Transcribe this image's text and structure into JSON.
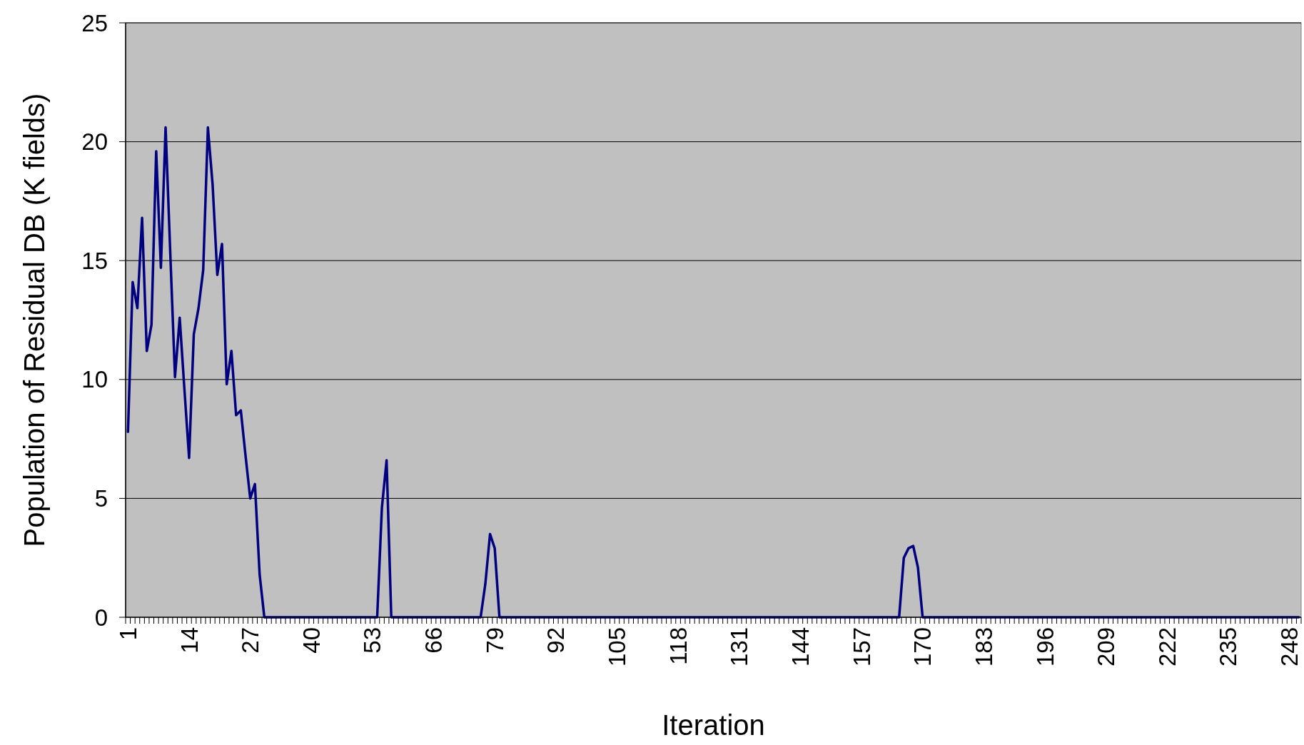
{
  "chart_data": {
    "type": "line",
    "xlabel": "Iteration",
    "ylabel": "Population of Residual DB (K fields)",
    "categories": [
      "1",
      null,
      null,
      null,
      null,
      null,
      null,
      null,
      null,
      null,
      null,
      null,
      null,
      "14",
      null,
      null,
      null,
      null,
      null,
      null,
      null,
      null,
      null,
      null,
      null,
      null,
      "27",
      null,
      null,
      null,
      null,
      null,
      null,
      null,
      null,
      null,
      null,
      null,
      null,
      "40",
      null,
      null,
      null,
      null,
      null,
      null,
      null,
      null,
      null,
      null,
      null,
      null,
      "53",
      null,
      null,
      null,
      null,
      null,
      null,
      null,
      null,
      null,
      null,
      null,
      null,
      "66",
      null,
      null,
      null,
      null,
      null,
      null,
      null,
      null,
      null,
      null,
      null,
      null,
      "79",
      null,
      null,
      null,
      null,
      null,
      null,
      null,
      null,
      null,
      null,
      null,
      null,
      "92",
      null,
      null,
      null,
      null,
      null,
      null,
      null,
      null,
      null,
      null,
      null,
      null,
      "105",
      null,
      null,
      null,
      null,
      null,
      null,
      null,
      null,
      null,
      null,
      null,
      null,
      "118",
      null,
      null,
      null,
      null,
      null,
      null,
      null,
      null,
      null,
      null,
      null,
      null,
      "131",
      null,
      null,
      null,
      null,
      null,
      null,
      null,
      null,
      null,
      null,
      null,
      null,
      "144",
      null,
      null,
      null,
      null,
      null,
      null,
      null,
      null,
      null,
      null,
      null,
      null,
      "157",
      null,
      null,
      null,
      null,
      null,
      null,
      null,
      null,
      null,
      null,
      null,
      null,
      "170",
      null,
      null,
      null,
      null,
      null,
      null,
      null,
      null,
      null,
      null,
      null,
      null,
      "183",
      null,
      null,
      null,
      null,
      null,
      null,
      null,
      null,
      null,
      null,
      null,
      null,
      "196",
      null,
      null,
      null,
      null,
      null,
      null,
      null,
      null,
      null,
      null,
      null,
      null,
      "209",
      null,
      null,
      null,
      null,
      null,
      null,
      null,
      null,
      null,
      null,
      null,
      null,
      "222",
      null,
      null,
      null,
      null,
      null,
      null,
      null,
      null,
      null,
      null,
      null,
      null,
      "235",
      null,
      null,
      null,
      null,
      null,
      null,
      null,
      null,
      null,
      null,
      null,
      null,
      "248",
      null,
      null
    ],
    "series": [
      {
        "color": "#000080",
        "values": [
          7.8,
          14.1,
          13.0,
          16.8,
          11.2,
          12.3,
          19.6,
          14.7,
          20.6,
          15.3,
          10.1,
          12.6,
          9.6,
          6.7,
          11.9,
          13.0,
          14.6,
          20.6,
          18.2,
          14.4,
          15.7,
          9.8,
          11.2,
          8.5,
          8.7,
          6.8,
          5.0,
          5.6,
          1.8,
          0,
          0,
          0,
          0,
          0,
          0,
          0,
          0,
          0,
          0,
          0,
          0,
          0,
          0,
          0,
          0,
          0,
          0,
          0,
          0,
          0,
          0,
          0,
          0,
          0,
          4.6,
          6.6,
          0,
          0,
          0,
          0,
          0,
          0,
          0,
          0,
          0,
          0,
          0,
          0,
          0,
          0,
          0,
          0,
          0,
          0,
          0,
          0,
          1.4,
          3.5,
          2.9,
          0,
          0,
          0,
          0,
          0,
          0,
          0,
          0,
          0,
          0,
          0,
          0,
          0,
          0,
          0,
          0,
          0,
          0,
          0,
          0,
          0,
          0,
          0,
          0,
          0,
          0,
          0,
          0,
          0,
          0,
          0,
          0,
          0,
          0,
          0,
          0,
          0,
          0,
          0,
          0,
          0,
          0,
          0,
          0,
          0,
          0,
          0,
          0,
          0,
          0,
          0,
          0,
          0,
          0,
          0,
          0,
          0,
          0,
          0,
          0,
          0,
          0,
          0,
          0,
          0,
          0,
          0,
          0,
          0,
          0,
          0,
          0,
          0,
          0,
          0,
          0,
          0,
          0,
          0,
          0,
          0,
          0,
          0,
          0,
          0,
          0,
          2.5,
          2.9,
          3.0,
          2.1,
          0,
          0,
          0,
          0,
          0,
          0,
          0,
          0,
          0,
          0,
          0,
          0,
          0,
          0,
          0,
          0,
          0,
          0,
          0,
          0,
          0,
          0,
          0,
          0,
          0,
          0,
          0,
          0,
          0,
          0,
          0,
          0,
          0,
          0,
          0,
          0,
          0,
          0,
          0,
          0,
          0,
          0,
          0,
          0,
          0,
          0,
          0,
          0,
          0,
          0,
          0,
          0,
          0,
          0,
          0,
          0,
          0,
          0,
          0,
          0,
          0,
          0,
          0,
          0,
          0,
          0,
          0,
          0,
          0,
          0,
          0,
          0,
          0,
          0,
          0,
          0,
          0,
          0,
          0,
          0,
          0
        ]
      }
    ],
    "ylim": [
      0,
      25
    ],
    "yticks": [
      0,
      5,
      10,
      15,
      20,
      25
    ],
    "grid": "y",
    "marker": "none",
    "line_style": "solid"
  }
}
